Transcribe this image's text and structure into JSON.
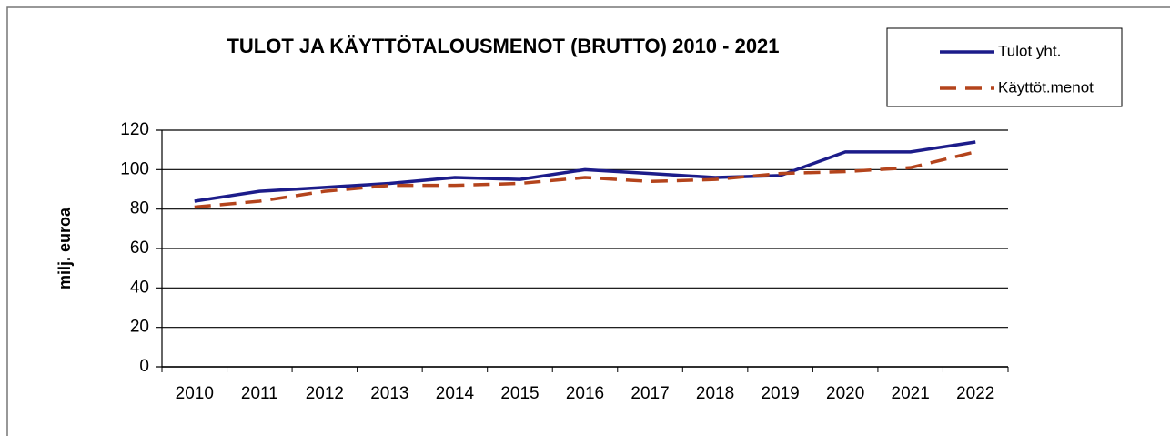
{
  "chart_data": {
    "type": "line",
    "title": "TULOT JA  KÄYTTÖTALOUSMENOT (BRUTTO) 2010 - 2021",
    "ylabel": "milj. euroa",
    "categories": [
      "2010",
      "2011",
      "2012",
      "2013",
      "2014",
      "2015",
      "2016",
      "2017",
      "2018",
      "2019",
      "2020",
      "2021",
      "2022"
    ],
    "series": [
      {
        "name": "Tulot yht.",
        "color": "#1c1c8a",
        "dash": false,
        "values": [
          84,
          89,
          91,
          93,
          96,
          95,
          100,
          98,
          96,
          97,
          109,
          109,
          114
        ]
      },
      {
        "name": "Käyttöt.menot",
        "color": "#b4441c",
        "dash": true,
        "values": [
          81,
          84,
          89,
          92,
          92,
          93,
          96,
          94,
          95,
          98,
          99,
          101,
          109
        ]
      }
    ],
    "ylim": [
      0,
      120
    ],
    "yticks": [
      0,
      20,
      40,
      60,
      80,
      100,
      120
    ],
    "grid": true,
    "legend": "top-right"
  }
}
